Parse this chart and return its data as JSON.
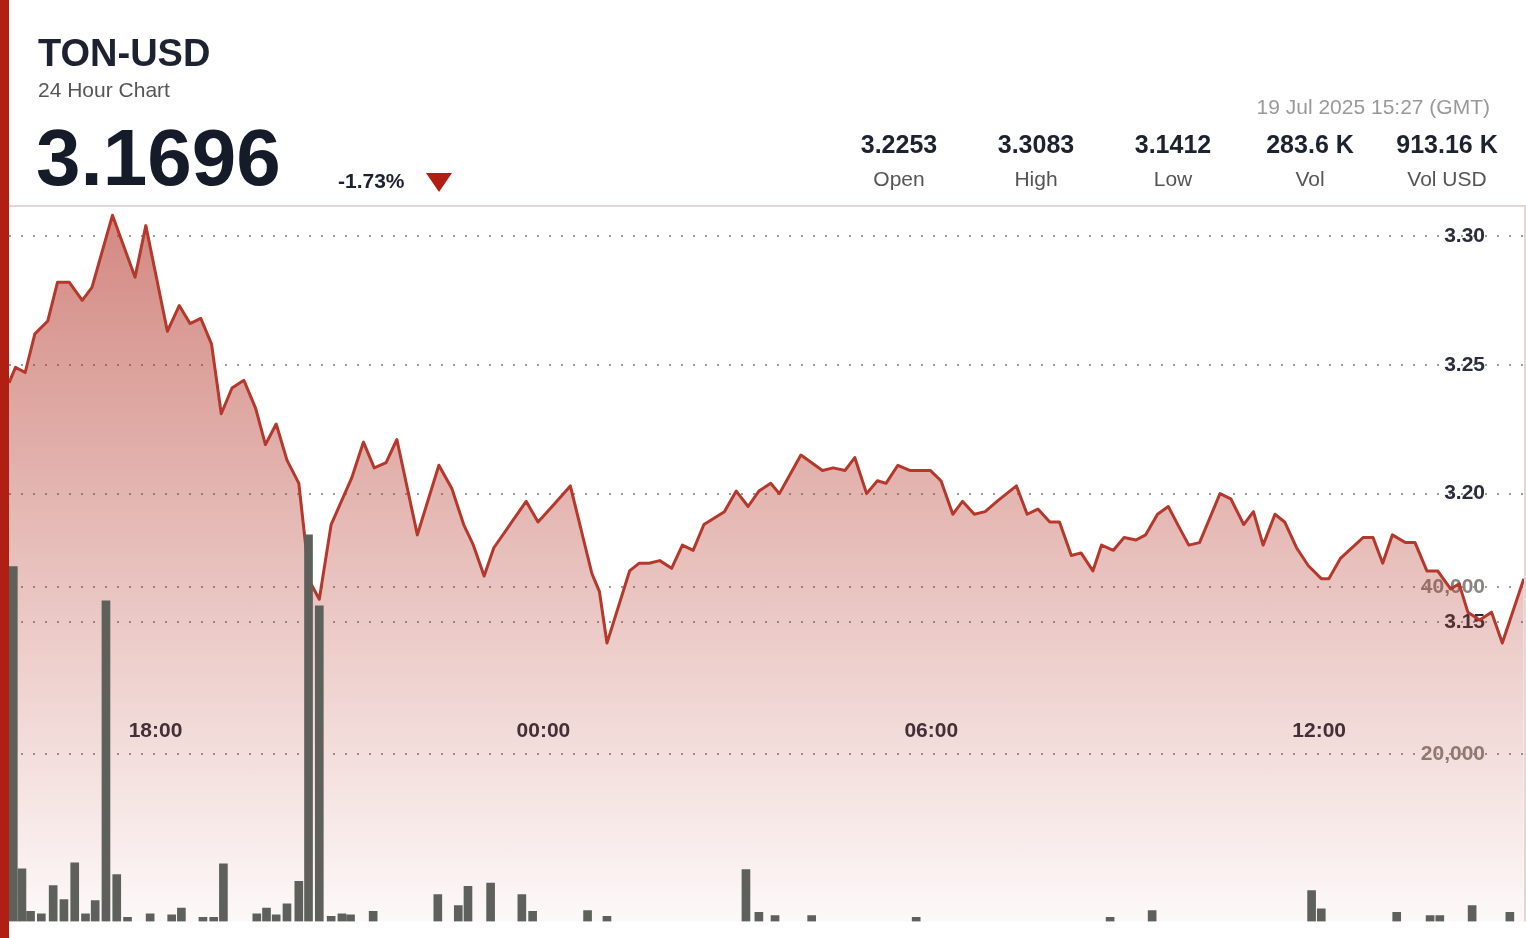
{
  "chart_data": {
    "type": "area",
    "title": "TON-USD",
    "subtitle": "24 Hour Chart",
    "annotations": [
      "3.1696",
      "-1.73%",
      "3.2253",
      "Open",
      "3.3083",
      "High",
      "3.1412",
      "Low",
      "283.6 K",
      "Vol",
      "913.16 K",
      "Vol USD",
      "19 Jul 2025 15:27 (GMT)"
    ],
    "xlim": [
      "2025-07-18T15:44",
      "2025-07-19T15:12"
    ],
    "xticks": [
      {
        "value": "2025-07-18T18:00",
        "label": "18:00"
      },
      {
        "value": "2025-07-19T00:00",
        "label": "00:00"
      },
      {
        "value": "2025-07-19T06:00",
        "label": "06:00"
      },
      {
        "value": "2025-07-19T12:00",
        "label": "12:00"
      }
    ],
    "ylim": [
      3.034,
      3.312
    ],
    "yticks": [
      {
        "value": 3.15,
        "label": "3.15"
      },
      {
        "value": 3.2,
        "label": "3.20"
      },
      {
        "value": 3.25,
        "label": "3.25"
      },
      {
        "value": 3.3,
        "label": "3.30"
      }
    ],
    "y2lim": [
      0,
      85800
    ],
    "y2ticks": [
      {
        "value": 20000,
        "label": "20,000"
      },
      {
        "value": 40000,
        "label": "40,000"
      }
    ],
    "grid": "y",
    "legend": false,
    "marker": "none",
    "series": [
      {
        "color": "#b5382c",
        "x": [
          "2025-07-18T15:44",
          "2025-07-18T15:50",
          "2025-07-18T15:59",
          "2025-07-18T16:08",
          "2025-07-18T16:20",
          "2025-07-18T16:29",
          "2025-07-18T16:40",
          "2025-07-18T16:52",
          "2025-07-18T17:01",
          "2025-07-18T17:20",
          "2025-07-18T17:41",
          "2025-07-18T17:51",
          "2025-07-18T18:11",
          "2025-07-18T18:22",
          "2025-07-18T18:32",
          "2025-07-18T18:42",
          "2025-07-18T18:52",
          "2025-07-18T19:01",
          "2025-07-18T19:11",
          "2025-07-18T19:22",
          "2025-07-18T19:33",
          "2025-07-18T19:42",
          "2025-07-18T19:52",
          "2025-07-18T20:02",
          "2025-07-18T20:13",
          "2025-07-18T20:23",
          "2025-07-18T20:32",
          "2025-07-18T20:43",
          "2025-07-18T21:02",
          "2025-07-18T21:13",
          "2025-07-18T21:23",
          "2025-07-18T21:34",
          "2025-07-18T21:44",
          "2025-07-18T22:03",
          "2025-07-18T22:23",
          "2025-07-18T22:35",
          "2025-07-18T22:46",
          "2025-07-18T22:55",
          "2025-07-18T23:05",
          "2025-07-18T23:14",
          "2025-07-18T23:44",
          "2025-07-18T23:55",
          "2025-07-19T00:06",
          "2025-07-19T00:25",
          "2025-07-19T00:45",
          "2025-07-19T00:52",
          "2025-07-19T00:59",
          "2025-07-19T01:20",
          "2025-07-19T01:29",
          "2025-07-19T01:38",
          "2025-07-19T01:48",
          "2025-07-19T01:59",
          "2025-07-19T02:09",
          "2025-07-19T02:19",
          "2025-07-19T02:29",
          "2025-07-19T02:48",
          "2025-07-19T02:59",
          "2025-07-19T03:10",
          "2025-07-19T03:20",
          "2025-07-19T03:31",
          "2025-07-19T03:39",
          "2025-07-19T03:47",
          "2025-07-19T03:59",
          "2025-07-19T04:19",
          "2025-07-19T04:29",
          "2025-07-19T04:40",
          "2025-07-19T04:49",
          "2025-07-19T05:00",
          "2025-07-19T05:10",
          "2025-07-19T05:18",
          "2025-07-19T05:29",
          "2025-07-19T05:40",
          "2025-07-19T05:59",
          "2025-07-19T06:09",
          "2025-07-19T06:20",
          "2025-07-19T06:29",
          "2025-07-19T06:40",
          "2025-07-19T06:50",
          "2025-07-19T07:01",
          "2025-07-19T07:19",
          "2025-07-19T07:29",
          "2025-07-19T07:39",
          "2025-07-19T07:50",
          "2025-07-19T07:59",
          "2025-07-19T08:10",
          "2025-07-19T08:19",
          "2025-07-19T08:30",
          "2025-07-19T08:38",
          "2025-07-19T08:49",
          "2025-07-19T08:59",
          "2025-07-19T09:10",
          "2025-07-19T09:19",
          "2025-07-19T09:30",
          "2025-07-19T09:40",
          "2025-07-19T09:50",
          "2025-07-19T09:59",
          "2025-07-19T10:09",
          "2025-07-19T10:28",
          "2025-07-19T10:38",
          "2025-07-19T10:50",
          "2025-07-19T10:59",
          "2025-07-19T11:08",
          "2025-07-19T11:19",
          "2025-07-19T11:28",
          "2025-07-19T11:39",
          "2025-07-19T11:50",
          "2025-07-19T12:02",
          "2025-07-19T12:09",
          "2025-07-19T12:20",
          "2025-07-19T12:41",
          "2025-07-19T12:50",
          "2025-07-19T12:59",
          "2025-07-19T13:08",
          "2025-07-19T13:20",
          "2025-07-19T13:29",
          "2025-07-19T13:40",
          "2025-07-19T13:50",
          "2025-07-19T14:02",
          "2025-07-19T14:10",
          "2025-07-19T14:18",
          "2025-07-19T14:29",
          "2025-07-19T14:40",
          "2025-07-19T14:50",
          "2025-07-19T15:10"
        ],
        "values": [
          3.243,
          3.249,
          3.247,
          3.262,
          3.267,
          3.282,
          3.282,
          3.275,
          3.28,
          3.308,
          3.284,
          3.304,
          3.263,
          3.273,
          3.266,
          3.268,
          3.258,
          3.231,
          3.241,
          3.244,
          3.233,
          3.219,
          3.227,
          3.213,
          3.204,
          3.166,
          3.159,
          3.188,
          3.206,
          3.22,
          3.21,
          3.212,
          3.221,
          3.184,
          3.211,
          3.202,
          3.188,
          3.18,
          3.168,
          3.179,
          3.197,
          3.189,
          3.194,
          3.203,
          3.169,
          3.162,
          3.142,
          3.17,
          3.173,
          3.173,
          3.174,
          3.171,
          3.18,
          3.178,
          3.188,
          3.193,
          3.201,
          3.195,
          3.201,
          3.204,
          3.2,
          3.206,
          3.215,
          3.209,
          3.21,
          3.209,
          3.214,
          3.2,
          3.205,
          3.204,
          3.211,
          3.209,
          3.209,
          3.205,
          3.192,
          3.197,
          3.192,
          3.193,
          3.197,
          3.203,
          3.192,
          3.194,
          3.189,
          3.189,
          3.176,
          3.177,
          3.17,
          3.18,
          3.178,
          3.183,
          3.182,
          3.184,
          3.192,
          3.195,
          3.187,
          3.18,
          3.181,
          3.2,
          3.198,
          3.188,
          3.193,
          3.18,
          3.192,
          3.189,
          3.179,
          3.172,
          3.167,
          3.167,
          3.175,
          3.183,
          3.183,
          3.173,
          3.184,
          3.181,
          3.181,
          3.17,
          3.17,
          3.163,
          3.165,
          3.154,
          3.151,
          3.154,
          3.142,
          3.167
        ]
      },
      {
        "type": "bar",
        "axis": "y2",
        "color": "#5e615b",
        "x": [
          "2025-07-18T15:48",
          "2025-07-18T15:56",
          "2025-07-18T16:04",
          "2025-07-18T16:14",
          "2025-07-18T16:25",
          "2025-07-18T16:35",
          "2025-07-18T16:45",
          "2025-07-18T16:55",
          "2025-07-18T17:04",
          "2025-07-18T17:14",
          "2025-07-18T17:24",
          "2025-07-18T17:34",
          "2025-07-18T17:55",
          "2025-07-18T18:15",
          "2025-07-18T18:24",
          "2025-07-18T18:44",
          "2025-07-18T18:54",
          "2025-07-18T19:03",
          "2025-07-18T19:34",
          "2025-07-18T19:43",
          "2025-07-18T19:52",
          "2025-07-18T20:02",
          "2025-07-18T20:13",
          "2025-07-18T20:22",
          "2025-07-18T20:32",
          "2025-07-18T20:43",
          "2025-07-18T20:53",
          "2025-07-18T21:01",
          "2025-07-18T21:22",
          "2025-07-18T22:22",
          "2025-07-18T22:41",
          "2025-07-18T22:50",
          "2025-07-18T23:11",
          "2025-07-18T23:40",
          "2025-07-18T23:50",
          "2025-07-19T00:41",
          "2025-07-19T00:59",
          "2025-07-19T03:08",
          "2025-07-19T03:20",
          "2025-07-19T03:35",
          "2025-07-19T04:09",
          "2025-07-19T05:46",
          "2025-07-19T08:46",
          "2025-07-19T09:25",
          "2025-07-19T11:53",
          "2025-07-19T12:02",
          "2025-07-19T13:12",
          "2025-07-19T13:43",
          "2025-07-19T13:52",
          "2025-07-19T14:22",
          "2025-07-19T14:57"
        ],
        "values": [
          42500,
          6300,
          1200,
          900,
          4300,
          2600,
          7000,
          900,
          2500,
          38400,
          5600,
          500,
          900,
          800,
          1600,
          500,
          500,
          6900,
          900,
          1600,
          800,
          2100,
          4800,
          46300,
          37800,
          600,
          900,
          800,
          1200,
          3200,
          1900,
          4200,
          4600,
          3200,
          1200,
          1300,
          600,
          6200,
          1100,
          700,
          700,
          500,
          500,
          1300,
          3700,
          1500,
          1100,
          700,
          700,
          1900,
          1100
        ]
      }
    ]
  }
}
